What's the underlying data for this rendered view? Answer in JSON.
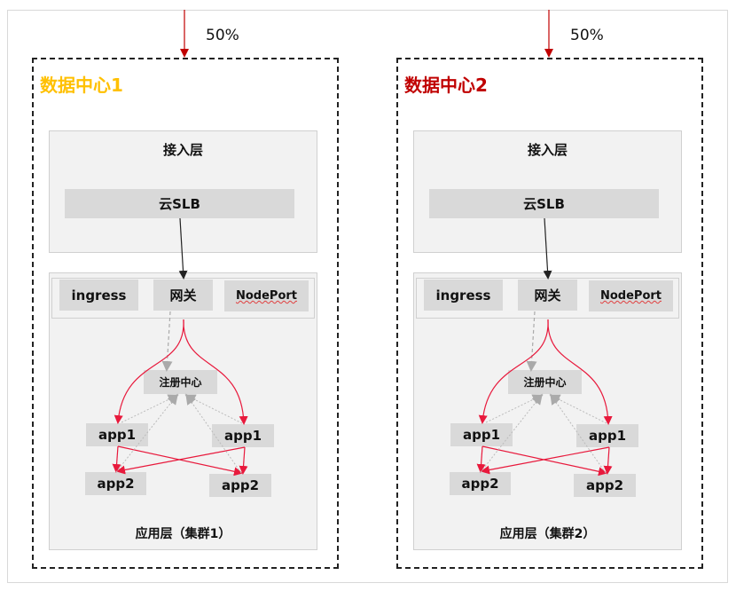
{
  "traffic_split": "50%",
  "colors": {
    "dc1_title": "#FFC000",
    "dc2_title": "#C00000",
    "flow": "#E8193C",
    "discovery": "#aaaaaa"
  },
  "datacenters": [
    {
      "title": "数据中心1",
      "access_layer": "接入层",
      "slb": "云SLB",
      "entry": [
        "ingress",
        "网关",
        "NodePort"
      ],
      "registry": "注册中心",
      "app1": "app1",
      "app2": "app2",
      "app_layer": "应用层（集群1）",
      "share": "50%"
    },
    {
      "title": "数据中心2",
      "access_layer": "接入层",
      "slb": "云SLB",
      "entry": [
        "ingress",
        "网关",
        "NodePort"
      ],
      "registry": "注册中心",
      "app1": "app1",
      "app2": "app2",
      "app_layer": "应用层（集群2）",
      "share": "50%"
    }
  ]
}
